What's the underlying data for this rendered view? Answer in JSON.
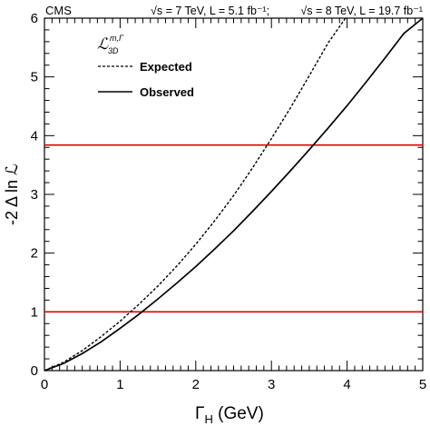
{
  "chart_data": {
    "type": "line",
    "header": {
      "experiment": "CMS",
      "lumi_7": "√s = 7 TeV, L = 5.1 fb⁻¹;",
      "lumi_8": "√s = 8 TeV, L = 19.7 fb⁻¹"
    },
    "xlabel_symbol": "Γ",
    "xlabel_sub": "H",
    "xlabel_unit": " (GeV)",
    "ylabel": "-2 Δ ln ℒ",
    "xlim": [
      0,
      5
    ],
    "ylim": [
      0,
      6
    ],
    "x_ticks": [
      "0",
      "1",
      "2",
      "3",
      "4",
      "5"
    ],
    "y_ticks": [
      "0",
      "1",
      "2",
      "3",
      "4",
      "5",
      "6"
    ],
    "legend": {
      "header_symbol": "ℒ",
      "header_sup": "m,Γ",
      "header_sub": "3D",
      "placement": "top-left"
    },
    "series": [
      {
        "name": "Expected",
        "style": "dashed",
        "color": "#000000",
        "x": [
          0,
          0.25,
          0.5,
          0.75,
          1.0,
          1.25,
          1.5,
          1.75,
          2.0,
          2.25,
          2.5,
          2.75,
          3.0,
          3.25,
          3.5,
          3.75,
          3.98
        ],
        "y": [
          0,
          0.14,
          0.34,
          0.58,
          0.84,
          1.13,
          1.44,
          1.78,
          2.15,
          2.55,
          2.98,
          3.45,
          3.95,
          4.47,
          5.02,
          5.58,
          6.0
        ]
      },
      {
        "name": "Observed",
        "style": "solid",
        "color": "#000000",
        "x": [
          0,
          0.25,
          0.5,
          0.75,
          1.0,
          1.25,
          1.5,
          1.75,
          2.0,
          2.25,
          2.5,
          2.75,
          3.0,
          3.25,
          3.5,
          3.75,
          4.0,
          4.25,
          4.5,
          4.75,
          5.0
        ],
        "y": [
          0,
          0.12,
          0.29,
          0.49,
          0.72,
          0.96,
          1.22,
          1.49,
          1.77,
          2.07,
          2.38,
          2.71,
          3.05,
          3.4,
          3.76,
          4.13,
          4.51,
          4.91,
          5.32,
          5.74,
          6.0
        ]
      }
    ],
    "reference_lines": [
      {
        "y": 1,
        "color": "#e00000"
      },
      {
        "y": 3.84,
        "color": "#e00000"
      }
    ],
    "grid": false
  }
}
